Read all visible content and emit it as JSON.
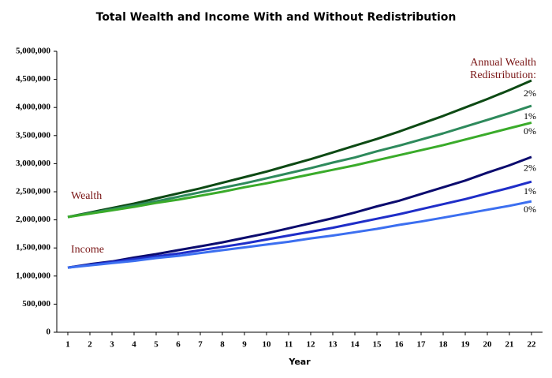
{
  "chart_data": {
    "type": "line",
    "title": "Total Wealth and Income With and Without Redistribution",
    "x_label": "Year",
    "x": [
      1,
      2,
      3,
      4,
      5,
      6,
      7,
      8,
      9,
      10,
      11,
      12,
      13,
      14,
      15,
      16,
      17,
      18,
      19,
      20,
      21,
      22
    ],
    "xlim": [
      0.5,
      22.5
    ],
    "ylim": [
      0,
      5000000
    ],
    "yticks": [
      0,
      {
        "value": 500000,
        "label": "500,000"
      },
      {
        "value": 1000000,
        "label": "1,000,000"
      },
      {
        "value": 1500000,
        "label": "1,500,000"
      },
      {
        "value": 2000000,
        "label": "2,000,000"
      },
      {
        "value": 2500000,
        "label": "2,500,000"
      },
      {
        "value": 3000000,
        "label": "3,000,000"
      },
      {
        "value": 3500000,
        "label": "3,500,000"
      },
      {
        "value": 4000000,
        "label": "4,000,000"
      },
      {
        "value": 4500000,
        "label": "4,500,000"
      },
      {
        "value": 5000000,
        "label": "5,000,000"
      }
    ],
    "grid": false,
    "annotations": [
      "Wealth",
      "Income"
    ],
    "legend_title": [
      "Annual Wealth",
      "Redistribution:"
    ],
    "series": [
      {
        "name": "2%",
        "color": "#0d4a14",
        "values": [
          2050000,
          2130000,
          2210000,
          2290000,
          2380000,
          2470000,
          2560000,
          2660000,
          2760000,
          2860000,
          2970000,
          3080000,
          3200000,
          3320000,
          3440000,
          3570000,
          3710000,
          3850000,
          4000000,
          4150000,
          4310000,
          4480000
        ]
      },
      {
        "name": "1%",
        "color": "#2e8a5c",
        "values": [
          2050000,
          2120000,
          2190000,
          2260000,
          2330000,
          2410000,
          2490000,
          2570000,
          2650000,
          2740000,
          2830000,
          2920000,
          3020000,
          3110000,
          3220000,
          3320000,
          3430000,
          3540000,
          3660000,
          3780000,
          3900000,
          4030000
        ]
      },
      {
        "name": "0%",
        "color": "#3aab2a",
        "values": [
          2050000,
          2110000,
          2170000,
          2230000,
          2300000,
          2360000,
          2430000,
          2500000,
          2580000,
          2650000,
          2730000,
          2810000,
          2890000,
          2970000,
          3060000,
          3150000,
          3240000,
          3330000,
          3430000,
          3530000,
          3630000,
          3730000
        ]
      },
      {
        "name": "2%",
        "color": "#0b0b6e",
        "values": [
          1150000,
          1210000,
          1260000,
          1330000,
          1390000,
          1460000,
          1530000,
          1600000,
          1680000,
          1760000,
          1850000,
          1940000,
          2030000,
          2130000,
          2240000,
          2340000,
          2460000,
          2580000,
          2700000,
          2840000,
          2970000,
          3120000
        ]
      },
      {
        "name": "1%",
        "color": "#1f2ec8",
        "values": [
          1150000,
          1200000,
          1250000,
          1300000,
          1350000,
          1400000,
          1460000,
          1520000,
          1580000,
          1650000,
          1720000,
          1790000,
          1860000,
          1940000,
          2020000,
          2100000,
          2190000,
          2280000,
          2370000,
          2470000,
          2570000,
          2680000
        ]
      },
      {
        "name": "0%",
        "color": "#3c6ff0",
        "values": [
          1150000,
          1190000,
          1230000,
          1270000,
          1320000,
          1360000,
          1410000,
          1460000,
          1510000,
          1560000,
          1610000,
          1670000,
          1720000,
          1780000,
          1840000,
          1910000,
          1970000,
          2040000,
          2110000,
          2180000,
          2250000,
          2330000
        ]
      }
    ]
  }
}
